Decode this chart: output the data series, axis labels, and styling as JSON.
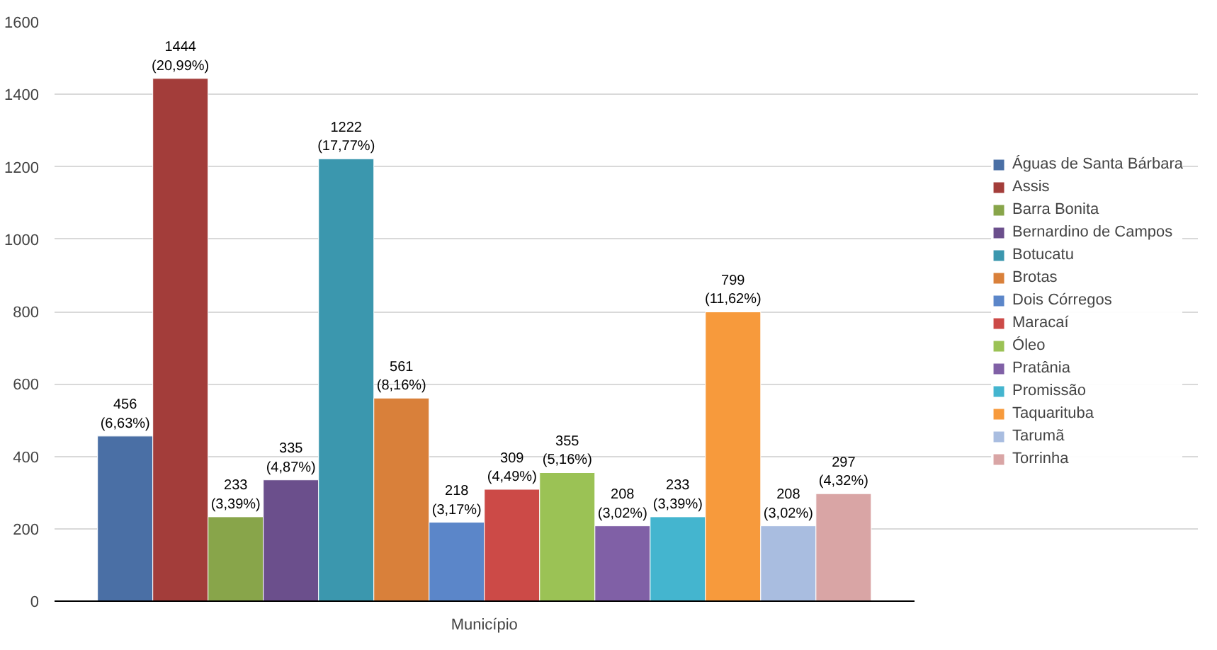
{
  "chart_data": {
    "type": "bar",
    "categories": [
      "Município"
    ],
    "series": [
      {
        "name": "Águas de Santa Bárbara",
        "color": "#4a6fa5",
        "values": [
          456
        ],
        "value_labels": [
          "456\n(6,63%)"
        ]
      },
      {
        "name": "Assis",
        "color": "#a33d3a",
        "values": [
          1444
        ],
        "value_labels": [
          "1444\n(20,99%)"
        ]
      },
      {
        "name": "Barra Bonita",
        "color": "#88a54a",
        "values": [
          233
        ],
        "value_labels": [
          "233\n(3,39%)"
        ]
      },
      {
        "name": "Bernardino de Campos",
        "color": "#6b4f8c",
        "values": [
          335
        ],
        "value_labels": [
          "335\n(4,87%)"
        ]
      },
      {
        "name": "Botucatu",
        "color": "#3b97ae",
        "values": [
          1222
        ],
        "value_labels": [
          "1222\n(17,77%)"
        ]
      },
      {
        "name": "Brotas",
        "color": "#d9803a",
        "values": [
          561
        ],
        "value_labels": [
          "561\n(8,16%)"
        ]
      },
      {
        "name": "Dois Córregos",
        "color": "#5b86c9",
        "values": [
          218
        ],
        "value_labels": [
          "218\n(3,17%)"
        ]
      },
      {
        "name": "Maracaí",
        "color": "#cc4a47",
        "values": [
          309
        ],
        "value_labels": [
          "309\n(4,49%)"
        ]
      },
      {
        "name": "Óleo",
        "color": "#9bc255",
        "values": [
          355
        ],
        "value_labels": [
          "355\n(5,16%)"
        ]
      },
      {
        "name": "Pratânia",
        "color": "#8060a6",
        "values": [
          208
        ],
        "value_labels": [
          "208\n(3,02%)"
        ]
      },
      {
        "name": "Promissão",
        "color": "#44b5cf",
        "values": [
          233
        ],
        "value_labels": [
          "233\n(3,39%)"
        ]
      },
      {
        "name": "Taquarituba",
        "color": "#f79a3c",
        "values": [
          799
        ],
        "value_labels": [
          "799\n(11,62%)"
        ]
      },
      {
        "name": "Tarumã",
        "color": "#a9bde0",
        "values": [
          208
        ],
        "value_labels": [
          "208\n(3,02%)"
        ]
      },
      {
        "name": "Torrinha",
        "color": "#d9a5a5",
        "values": [
          297
        ],
        "value_labels": [
          "297\n(4,32%)"
        ]
      }
    ],
    "ylim": [
      0,
      1600
    ],
    "yticks": [
      0,
      200,
      400,
      600,
      800,
      1000,
      1200,
      1400,
      1600
    ],
    "grid": "y",
    "legend": "right"
  }
}
